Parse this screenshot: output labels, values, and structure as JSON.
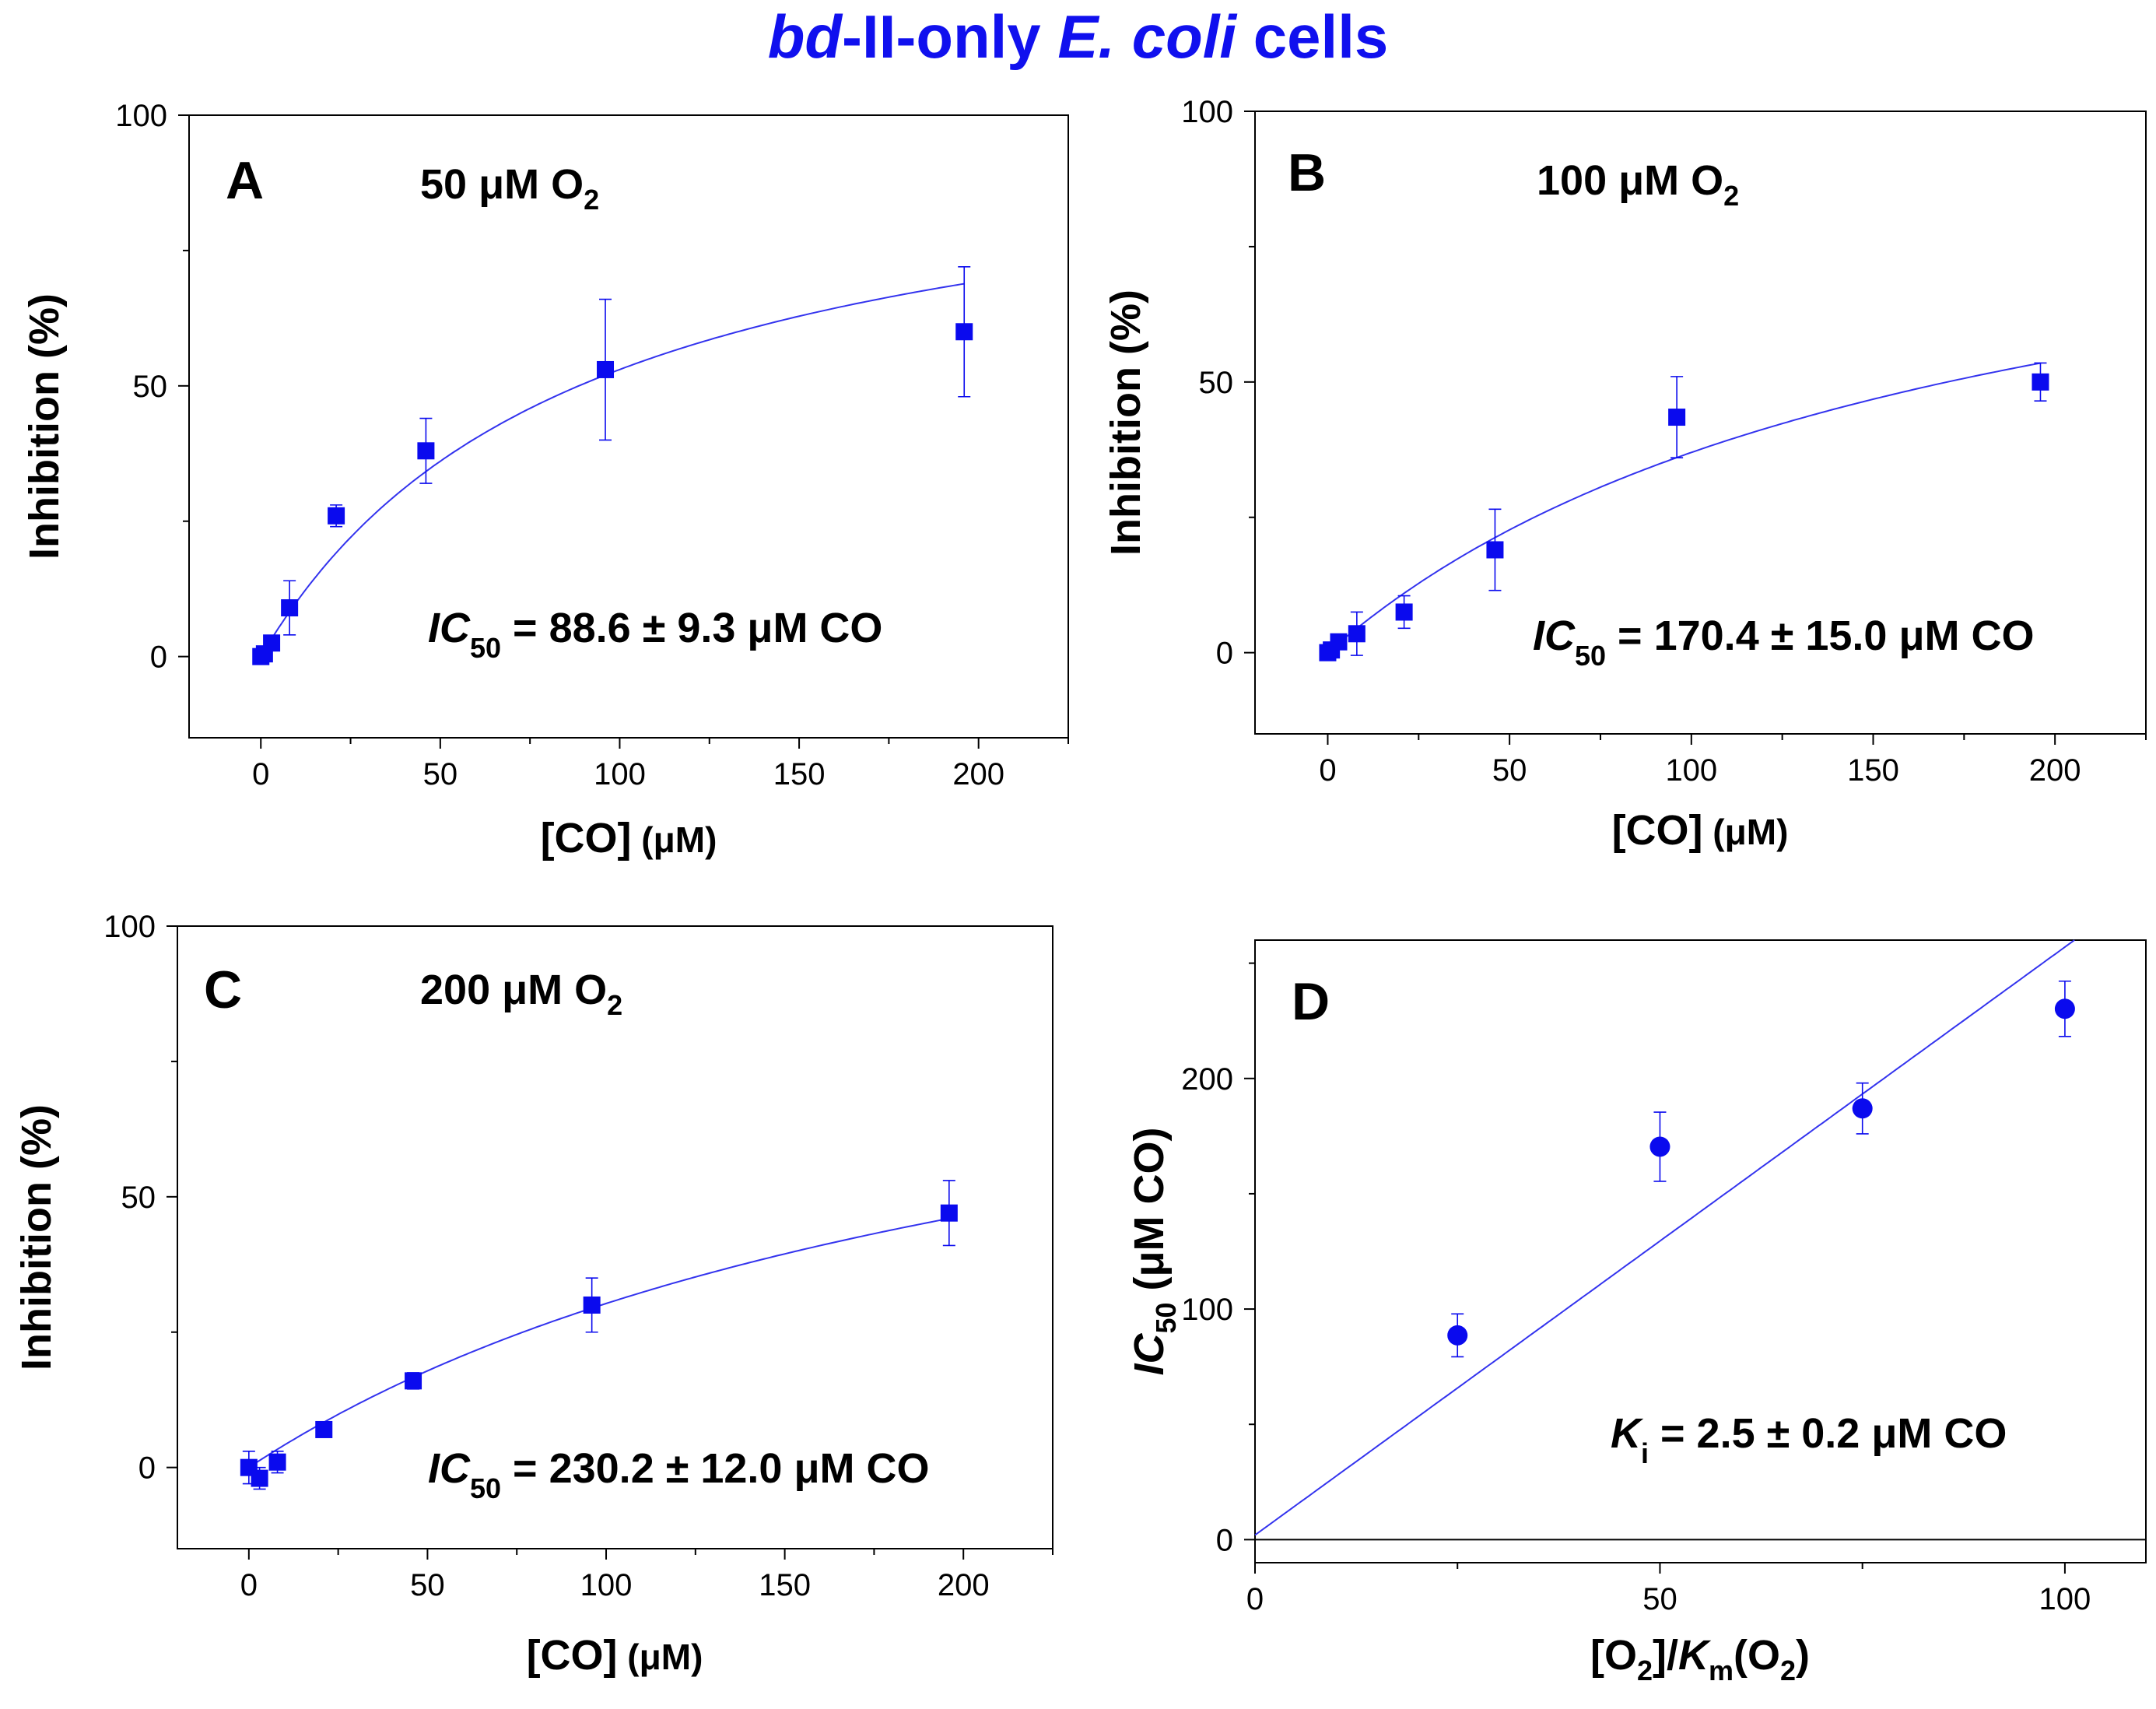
{
  "figure_title": {
    "part1": "bd",
    "part2": "-II-only ",
    "part3": "E. coli",
    "part4": " cells"
  },
  "colors": {
    "data": "#0a0aee",
    "fit": "#3333ee",
    "title": "#1010ee"
  },
  "chart_data": [
    {
      "type": "scatter",
      "panel": "A",
      "subtitle": {
        "prefix": "50 μM O",
        "sub": "2"
      },
      "annotation": {
        "ic": "IC",
        "sub": "50",
        "text": " = 88.6 ± 9.3 μM CO"
      },
      "xlabel": {
        "main": "[CO]",
        "unit": " (μM)"
      },
      "ylabel": "Inhibition (%)",
      "xlim": [
        -20,
        225
      ],
      "ylim": [
        -15,
        100
      ],
      "xticks": [
        0,
        50,
        100,
        150,
        200
      ],
      "yticks": [
        0,
        50,
        100
      ],
      "marker": "square",
      "points": [
        {
          "x": 0,
          "y": 0,
          "err": 0
        },
        {
          "x": 1,
          "y": 0.5,
          "err": 0
        },
        {
          "x": 3,
          "y": 2.5,
          "err": 0
        },
        {
          "x": 8,
          "y": 9,
          "err": 5
        },
        {
          "x": 21,
          "y": 26,
          "err": 2
        },
        {
          "x": 46,
          "y": 38,
          "err": 6
        },
        {
          "x": 96,
          "y": 53,
          "err": 13
        },
        {
          "x": 196,
          "y": 60,
          "err": 12
        }
      ],
      "fit": {
        "kind": "hyperbolic",
        "max": 100,
        "ic50": 88.6,
        "x0": 0,
        "x1": 196
      }
    },
    {
      "type": "scatter",
      "panel": "B",
      "subtitle": {
        "prefix": "100 μM O",
        "sub": "2"
      },
      "annotation": {
        "ic": "IC",
        "sub": "50",
        "text": " = 170.4 ± 15.0 μM CO"
      },
      "xlabel": {
        "main": "[CO]",
        "unit": " (μM)"
      },
      "ylabel": "Inhibition (%)",
      "xlim": [
        -20,
        225
      ],
      "ylim": [
        -15,
        100
      ],
      "xticks": [
        0,
        50,
        100,
        150,
        200
      ],
      "yticks": [
        0,
        50,
        100
      ],
      "marker": "square",
      "points": [
        {
          "x": 0,
          "y": 0,
          "err": 0
        },
        {
          "x": 1,
          "y": 0.5,
          "err": 0
        },
        {
          "x": 3,
          "y": 2,
          "err": 0
        },
        {
          "x": 8,
          "y": 3.5,
          "err": 4
        },
        {
          "x": 21,
          "y": 7.5,
          "err": 3
        },
        {
          "x": 46,
          "y": 19,
          "err": 7.5
        },
        {
          "x": 96,
          "y": 43.5,
          "err": 7.5
        },
        {
          "x": 196,
          "y": 50,
          "err": 3.5
        }
      ],
      "fit": {
        "kind": "hyperbolic",
        "max": 100,
        "ic50": 170.4,
        "x0": 0,
        "x1": 196
      }
    },
    {
      "type": "scatter",
      "panel": "C",
      "subtitle": {
        "prefix": "200 μM O",
        "sub": "2"
      },
      "annotation": {
        "ic": "IC",
        "sub": "50",
        "text": " = 230.2 ± 12.0 μM CO"
      },
      "xlabel": {
        "main": "[CO]",
        "unit": " (μM)"
      },
      "ylabel": "Inhibition (%)",
      "xlim": [
        -20,
        225
      ],
      "ylim": [
        -15,
        100
      ],
      "xticks": [
        0,
        50,
        100,
        150,
        200
      ],
      "yticks": [
        0,
        50,
        100
      ],
      "marker": "square",
      "points": [
        {
          "x": 0,
          "y": 0,
          "err": 3
        },
        {
          "x": 3,
          "y": -2,
          "err": 2
        },
        {
          "x": 8,
          "y": 1,
          "err": 2
        },
        {
          "x": 21,
          "y": 7,
          "err": 1
        },
        {
          "x": 46,
          "y": 16,
          "err": 1.5
        },
        {
          "x": 96,
          "y": 30,
          "err": 5
        },
        {
          "x": 196,
          "y": 47,
          "err": 6
        }
      ],
      "fit": {
        "kind": "hyperbolic",
        "max": 100,
        "ic50": 230.2,
        "x0": 0,
        "x1": 196
      }
    },
    {
      "type": "scatter",
      "panel": "D",
      "subtitle": null,
      "annotation": {
        "ic": "K",
        "sub": "i",
        "text": " = 2.5 ± 0.2 μM CO",
        "ic_italic": true
      },
      "xlabel": {
        "o2": "[O",
        "o2sub": "2",
        "slash": "]/",
        "km": "K",
        "kmsub": "m",
        "rest": "(O",
        "restsub": "2",
        "close": ")"
      },
      "ylabel": {
        "ic": "IC",
        "sub": "50",
        "unit": " (μM CO)"
      },
      "xlim": [
        0,
        110
      ],
      "ylim": [
        -10,
        260
      ],
      "xticks": [
        0,
        50,
        100
      ],
      "yticks": [
        0,
        100,
        200
      ],
      "marker": "circle",
      "points": [
        {
          "x": 25,
          "y": 88.6,
          "err": 9.3
        },
        {
          "x": 50,
          "y": 170.4,
          "err": 15
        },
        {
          "x": 75,
          "y": 187,
          "err": 11
        },
        {
          "x": 100,
          "y": 230.2,
          "err": 12
        }
      ],
      "fit": {
        "kind": "linear",
        "slope": 2.55,
        "intercept": 2,
        "x0": 0,
        "x1": 103
      },
      "zero_line": true
    }
  ]
}
